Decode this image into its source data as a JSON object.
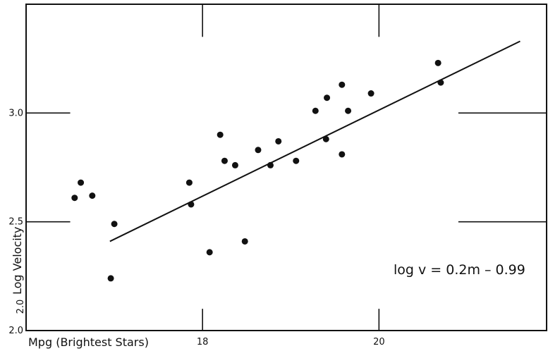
{
  "chart_data": {
    "type": "scatter",
    "title": "",
    "xlabel": "Mpg (Brightest Stars)",
    "ylabel": "Log Velocity",
    "xlim": [
      16.0,
      21.9
    ],
    "ylim": [
      2.0,
      3.5
    ],
    "x_ticks": [
      "18",
      "20"
    ],
    "y_ticks": [
      "2.0",
      "2.5",
      "3.0"
    ],
    "y_extra_tick_label": "2.0",
    "annotation": "log v = 0.2m – 0.99",
    "grid": true,
    "fit_line": {
      "x_start": 16.95,
      "x_end": 21.6
    },
    "points": [
      {
        "x": 16.55,
        "y": 2.61
      },
      {
        "x": 16.62,
        "y": 2.68
      },
      {
        "x": 16.75,
        "y": 2.62
      },
      {
        "x": 17.0,
        "y": 2.49
      },
      {
        "x": 16.96,
        "y": 2.24
      },
      {
        "x": 17.85,
        "y": 2.68
      },
      {
        "x": 17.87,
        "y": 2.58
      },
      {
        "x": 18.2,
        "y": 2.9
      },
      {
        "x": 18.25,
        "y": 2.78
      },
      {
        "x": 18.37,
        "y": 2.76
      },
      {
        "x": 18.08,
        "y": 2.36
      },
      {
        "x": 18.48,
        "y": 2.41
      },
      {
        "x": 18.63,
        "y": 2.83
      },
      {
        "x": 18.77,
        "y": 2.76
      },
      {
        "x": 18.86,
        "y": 2.87
      },
      {
        "x": 19.06,
        "y": 2.78
      },
      {
        "x": 19.28,
        "y": 3.01
      },
      {
        "x": 19.41,
        "y": 3.07
      },
      {
        "x": 19.4,
        "y": 2.88
      },
      {
        "x": 19.58,
        "y": 3.13
      },
      {
        "x": 19.58,
        "y": 2.81
      },
      {
        "x": 19.65,
        "y": 3.01
      },
      {
        "x": 19.91,
        "y": 3.09
      },
      {
        "x": 20.67,
        "y": 3.23
      },
      {
        "x": 20.7,
        "y": 3.14
      }
    ]
  }
}
